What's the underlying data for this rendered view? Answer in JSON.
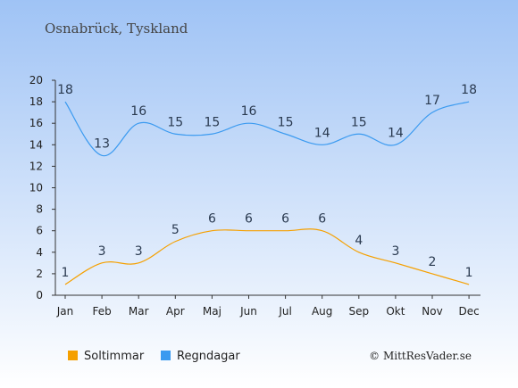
{
  "title": "Osnabrück, Tyskland",
  "credit": "© MittResVader.se",
  "colors": {
    "bg_top": "#9fc3f5",
    "bg_bottom": "#ffffff",
    "Soltimmar": "#f5a000",
    "Regndagar": "#3a9af0"
  },
  "chart_data": {
    "type": "line",
    "title": "Osnabrück, Tyskland",
    "categories": [
      "Jan",
      "Feb",
      "Mar",
      "Apr",
      "Maj",
      "Jun",
      "Jul",
      "Aug",
      "Sep",
      "Okt",
      "Nov",
      "Dec"
    ],
    "ylim": [
      0,
      20
    ],
    "yticks": [
      0,
      2,
      4,
      6,
      8,
      10,
      12,
      14,
      16,
      18,
      20
    ],
    "grid": false,
    "legend_position": "bottom-left",
    "series": [
      {
        "name": "Soltimmar",
        "values": [
          1,
          3,
          3,
          5,
          6,
          6,
          6,
          6,
          4,
          3,
          2,
          1
        ]
      },
      {
        "name": "Regndagar",
        "values": [
          18,
          13,
          16,
          15,
          15,
          16,
          15,
          14,
          15,
          14,
          17,
          18
        ]
      }
    ]
  }
}
